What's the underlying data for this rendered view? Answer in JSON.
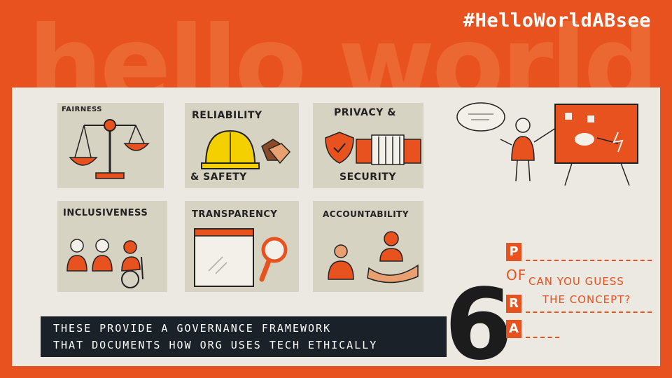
{
  "background_word": "hello world",
  "hashtag": "#HelloWorldABsee",
  "cards": {
    "fairness": "FAIRNESS",
    "reliability_top": "RELIABILITY",
    "reliability_bottom": "& SAFETY",
    "privacy_top": "PRIVACY &",
    "privacy_bottom": "SECURITY",
    "inclusiveness": "INCLUSIVENESS",
    "transparency": "TRANSPARENCY",
    "accountability": "ACCOUNTABILITY"
  },
  "big_number": "6",
  "guess": {
    "line1": "CAN YOU GUESS",
    "line2": "THE CONCEPT?"
  },
  "acronym": {
    "p": "P",
    "of": "OF",
    "r": "R",
    "a": "A"
  },
  "footer": {
    "line1": "THESE PROVIDE A GOVERNANCE FRAMEWORK",
    "line2": "THAT DOCUMENTS HOW ORG USES TECH ETHICALLY"
  },
  "colors": {
    "accent": "#e8521f",
    "panel": "#ebe9e1",
    "card": "#d6d3c2",
    "footer_bg": "#1b2128",
    "helmet": "#f5d000"
  }
}
